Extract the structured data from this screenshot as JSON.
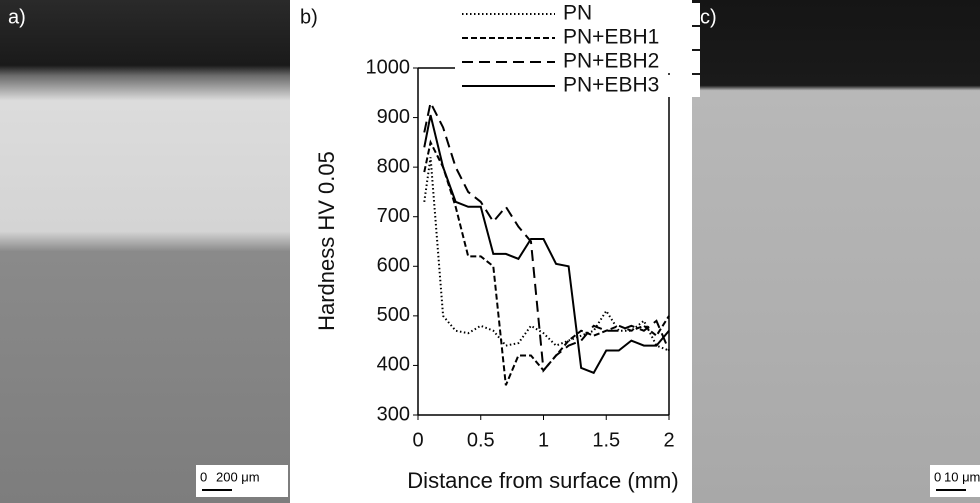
{
  "panels": [
    {
      "label": "a)",
      "scale_start": "0",
      "scale_end": "200 μm"
    },
    {
      "label": "b)"
    },
    {
      "label": "c)",
      "scale_start": "0",
      "scale_end": "10 μm"
    }
  ],
  "chart_data": {
    "type": "line",
    "xlabel": "Distance from surface (mm)",
    "ylabel": "Hardness HV 0.05",
    "x": [
      0.05,
      0.1,
      0.2,
      0.3,
      0.4,
      0.5,
      0.6,
      0.7,
      0.8,
      0.9,
      1.0,
      1.1,
      1.2,
      1.3,
      1.4,
      1.5,
      1.6,
      1.7,
      1.8,
      1.9,
      2.0
    ],
    "xlim": [
      0,
      2
    ],
    "ylim": [
      300,
      1000
    ],
    "xticks": [
      0,
      0.5,
      1,
      1.5,
      2
    ],
    "yticks": [
      300,
      400,
      500,
      600,
      700,
      800,
      900,
      1000
    ],
    "series": [
      {
        "name": "PN",
        "color": "#000000",
        "dash": "dotted",
        "values": [
          730,
          820,
          500,
          470,
          465,
          480,
          470,
          440,
          445,
          480,
          465,
          440,
          450,
          460,
          470,
          510,
          470,
          470,
          490,
          440,
          430
        ]
      },
      {
        "name": "PN+EBH1",
        "color": "#000000",
        "dash": "short",
        "values": [
          790,
          850,
          800,
          720,
          620,
          620,
          600,
          360,
          420,
          420,
          390,
          420,
          450,
          470,
          460,
          470,
          480,
          470,
          480,
          460,
          500
        ]
      },
      {
        "name": "PN+EBH2",
        "color": "#000000",
        "dash": "long",
        "values": [
          870,
          930,
          880,
          800,
          750,
          730,
          690,
          720,
          680,
          650,
          390,
          420,
          440,
          450,
          480,
          470,
          470,
          480,
          470,
          490,
          430
        ]
      },
      {
        "name": "PN+EBH3",
        "color": "#000000",
        "dash": "solid",
        "values": [
          840,
          905,
          800,
          730,
          720,
          720,
          625,
          625,
          615,
          655,
          655,
          605,
          600,
          395,
          385,
          430,
          430,
          450,
          440,
          440,
          470
        ]
      }
    ]
  }
}
